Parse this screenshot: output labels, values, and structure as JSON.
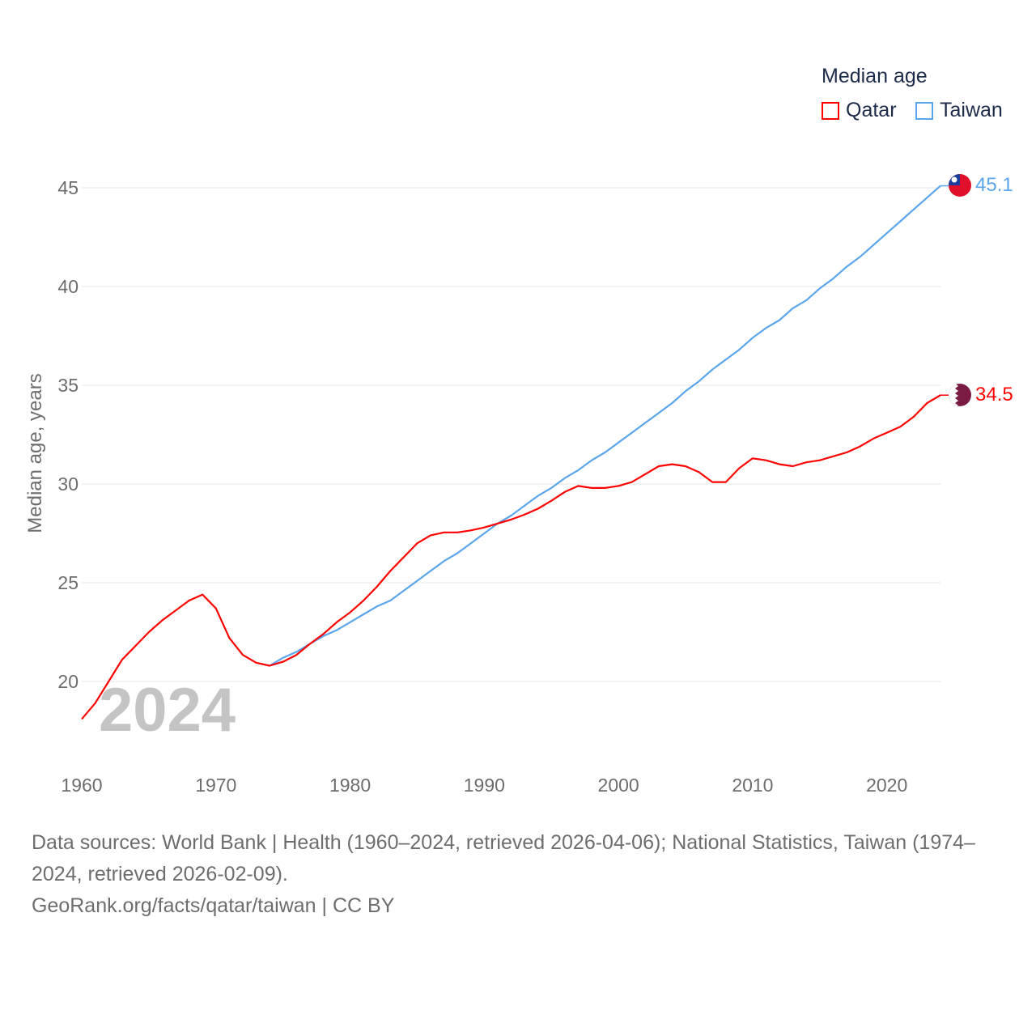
{
  "legend": {
    "title": "Median age",
    "items": [
      {
        "label": "Qatar",
        "color": "#ff0000"
      },
      {
        "label": "Taiwan",
        "color": "#5aa5eb"
      }
    ]
  },
  "year_watermark": "2024",
  "end_labels": {
    "taiwan": "45.1",
    "qatar": "34.5"
  },
  "footer": {
    "line1": "Data sources: World Bank | Health (1960–2024, retrieved 2026-04-06); National Statistics, Taiwan (1974–2024, retrieved 2026-02-09).",
    "line2": "GeoRank.org/facts/qatar/taiwan | CC BY"
  },
  "chart_data": {
    "type": "line",
    "title": "Median age",
    "xlabel": "",
    "ylabel": "Median age, years",
    "xlim": [
      1960,
      2024
    ],
    "ylim": [
      17.5,
      45.5
    ],
    "yticks": [
      20,
      25,
      30,
      35,
      40,
      45
    ],
    "xticks": [
      1960,
      1970,
      1980,
      1990,
      2000,
      2010,
      2020
    ],
    "grid": true,
    "legend_position": "top-right",
    "series": [
      {
        "name": "Qatar",
        "color": "#ff0000",
        "start_year": 1960,
        "values": [
          18.1,
          18.9,
          20.0,
          21.1,
          21.8,
          22.5,
          23.1,
          23.6,
          24.1,
          24.4,
          23.7,
          22.2,
          21.35,
          20.95,
          20.8,
          21.0,
          21.35,
          21.9,
          22.4,
          23.0,
          23.5,
          24.1,
          24.8,
          25.6,
          26.3,
          27.0,
          27.4,
          27.55,
          27.55,
          27.65,
          27.8,
          28.0,
          28.2,
          28.45,
          28.75,
          29.15,
          29.6,
          29.9,
          29.8,
          29.8,
          29.9,
          30.1,
          30.5,
          30.9,
          31.0,
          30.9,
          30.6,
          30.1,
          30.1,
          30.8,
          31.3,
          31.2,
          31.0,
          30.9,
          31.1,
          31.2,
          31.4,
          31.6,
          31.9,
          32.3,
          32.6,
          32.9,
          33.4,
          34.1,
          34.5
        ]
      },
      {
        "name": "Taiwan",
        "color": "#5aa5eb",
        "start_year": 1974,
        "values": [
          20.8,
          21.2,
          21.5,
          21.9,
          22.3,
          22.6,
          23.0,
          23.4,
          23.8,
          24.1,
          24.6,
          25.1,
          25.6,
          26.1,
          26.5,
          27.0,
          27.5,
          28.0,
          28.4,
          28.9,
          29.4,
          29.8,
          30.3,
          30.7,
          31.2,
          31.6,
          32.1,
          32.6,
          33.1,
          33.6,
          34.1,
          34.7,
          35.2,
          35.8,
          36.3,
          36.8,
          37.4,
          37.9,
          38.3,
          38.9,
          39.3,
          39.9,
          40.4,
          41.0,
          41.5,
          42.1,
          42.7,
          43.3,
          43.9,
          44.5,
          45.1
        ]
      }
    ]
  }
}
